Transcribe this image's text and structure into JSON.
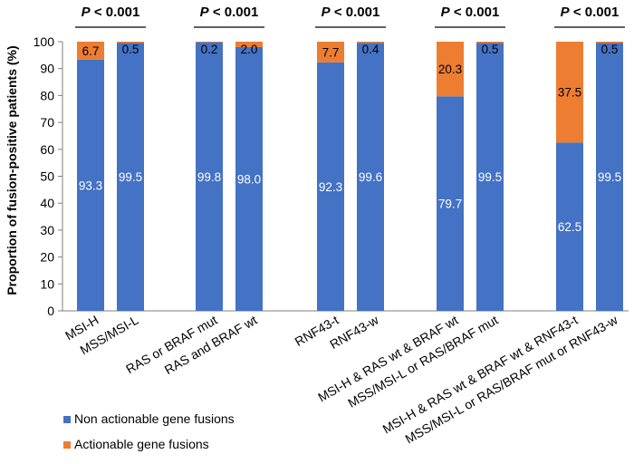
{
  "chart_data": {
    "type": "bar",
    "stacked": true,
    "ylabel": "Proportion of fusion-positive patients (%)",
    "ylim": [
      0,
      100
    ],
    "yticks": [
      0,
      10,
      20,
      30,
      40,
      50,
      60,
      70,
      80,
      90,
      100
    ],
    "grid": false,
    "legend_position": "bottom-left",
    "categories": [
      "MSI-H",
      "MSS/MSI-L",
      "RAS or BRAF mut",
      "RAS and BRAF wt",
      "RNF43-t",
      "RNF43-w",
      "MSI-H & RAS wt & BRAF wt",
      "MSS/MSI-L or RAS/BRAF mut",
      "MSI-H & RAS wt & BRAF wt & RNF43-t",
      "MSS/MSI-L or RAS/BRAF mut or RNF43-w"
    ],
    "series": [
      {
        "name": "Non actionable gene fusions",
        "color": "#4472C4",
        "values": [
          93.3,
          99.5,
          99.8,
          98.0,
          92.3,
          99.6,
          79.7,
          99.5,
          62.5,
          99.5
        ],
        "labels": [
          "93.3",
          "99.5",
          "99.8",
          "98.0",
          "92.3",
          "99.6",
          "79.7",
          "99.5",
          "62.5",
          "99.5"
        ]
      },
      {
        "name": "Actionable gene fusions",
        "color": "#ED7D31",
        "values": [
          6.7,
          0.5,
          0.2,
          2.0,
          7.7,
          0.4,
          20.3,
          0.5,
          37.5,
          0.5
        ],
        "labels": [
          "6.7",
          "0.5",
          "0.2",
          "2.0",
          "7.7",
          "0.4",
          "20.3",
          "0.5",
          "37.5",
          "0.5"
        ]
      }
    ],
    "comparisons": [
      {
        "text_italic": "P",
        "text_rest": " < 0.001",
        "pair": [
          0,
          1
        ]
      },
      {
        "text_italic": "P",
        "text_rest": " < 0.001",
        "pair": [
          2,
          3
        ]
      },
      {
        "text_italic": "P",
        "text_rest": " < 0.001",
        "pair": [
          4,
          5
        ]
      },
      {
        "text_italic": "P",
        "text_rest": " < 0.001",
        "pair": [
          6,
          7
        ]
      },
      {
        "text_italic": "P",
        "text_rest": " < 0.001",
        "pair": [
          8,
          9
        ]
      }
    ]
  }
}
